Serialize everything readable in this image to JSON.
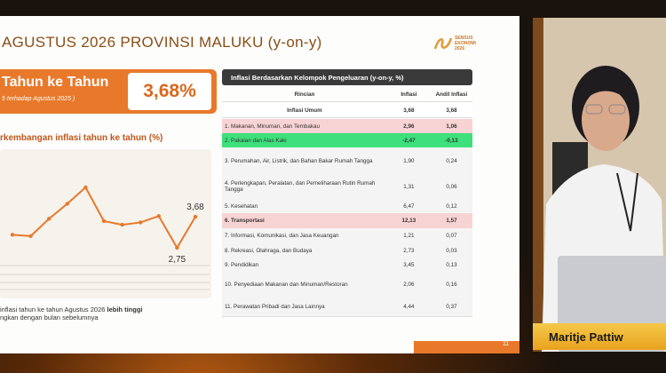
{
  "slide": {
    "title": "AGUSTUS 2026 PROVINSI MALUKU (y-on-y)",
    "logo": {
      "line1": "SENSUS",
      "line2": "EKONOMI",
      "line3": "2026"
    },
    "headline": {
      "label": "Tahun ke Tahun",
      "note": "5 terhadap Agustus 2025 )",
      "value": "3,68%"
    },
    "chart": {
      "type": "line",
      "title": "rkembangan inflasi tahun ke tahun (%)",
      "color": "#e8792b",
      "values": [
        3.14,
        3.1,
        3.62,
        4.07,
        4.56,
        3.55,
        3.44,
        3.51,
        3.7,
        2.75,
        3.68
      ],
      "value_labels": [
        null,
        null,
        null,
        null,
        null,
        null,
        null,
        null,
        null,
        "2,75",
        "3,68"
      ]
    },
    "note": {
      "line1": "inflasi tahun ke tahun Agustus 2026",
      "bold": "lebih tinggi",
      "line2": "ngkan dengan bulan sebelumnya"
    },
    "table": {
      "title": "Inflasi Berdasarkan Kelompok Pengeluaran (y-on-y, %)",
      "header": [
        "Rincian",
        "Inflasi",
        "Andil Inflasi"
      ],
      "rows": [
        [
          "Inflasi Umum",
          "3,68",
          "3,68"
        ],
        [
          "1. Makanan, Minuman, dan Tembakau",
          "2,96",
          "1,06"
        ],
        [
          "2. Pakaian dan Alas Kaki",
          "-2,47",
          "-0,13"
        ],
        [
          "3. Perumahan, Air, Listrik, dan Bahan Bakar Rumah Tangga",
          "1,90",
          "0,24"
        ],
        [
          "4. Perlengkapan, Peralatan, dan Pemeliharaan Rutin Rumah Tangga",
          "1,31",
          "0,06"
        ],
        [
          "5. Kesehatan",
          "6,47",
          "0,12"
        ],
        [
          "6. Transportasi",
          "12,13",
          "1,57"
        ],
        [
          "7. Informasi, Komunikasi, dan Jasa Keuangan",
          "1,21",
          "0,07"
        ],
        [
          "8. Rekreasi, Olahraga, dan Budaya",
          "2,73",
          "0,03"
        ],
        [
          "9. Pendidikan",
          "3,45",
          "0,13"
        ],
        [
          "10. Penyediaan Makanan dan Minuman/Restoran",
          "2,06",
          "0,16"
        ],
        [
          "11. Perawatan Pribadi dan Jasa Lainnya",
          "4,44",
          "0,37"
        ]
      ]
    },
    "page_number": "11"
  },
  "video": {
    "name": "Maritje Pattiw"
  }
}
